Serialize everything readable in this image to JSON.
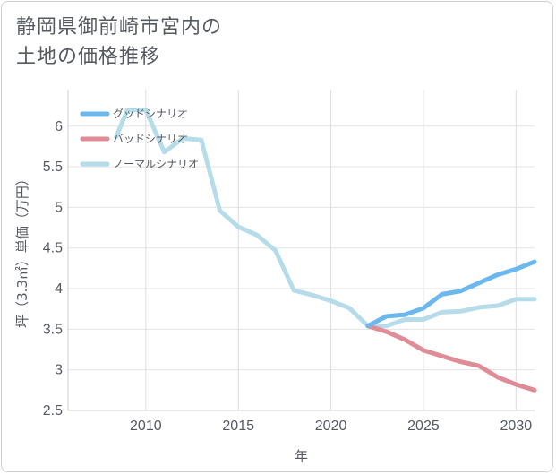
{
  "title_lines": [
    "静岡県御前崎市宮内の",
    "土地の価格推移"
  ],
  "chart_data": {
    "type": "line",
    "xlabel": "年",
    "ylabel": "坪（3.3㎡）単価（万円）",
    "xlim": [
      2005.8,
      2031
    ],
    "ylim": [
      2.5,
      6.45
    ],
    "xticks": [
      2010,
      2015,
      2020,
      2025,
      2030
    ],
    "yticks": [
      2.5,
      3,
      3.5,
      4,
      4.5,
      5,
      5.5,
      6
    ],
    "grid": true,
    "legend_position": "top-left",
    "series": [
      {
        "name": "グッドシナリオ",
        "color": "#6bb8ee",
        "x": [
          2022,
          2023,
          2024,
          2025,
          2026,
          2027,
          2028,
          2029,
          2030,
          2031
        ],
        "y": [
          3.54,
          3.66,
          3.68,
          3.76,
          3.93,
          3.97,
          4.07,
          4.17,
          4.24,
          4.33
        ]
      },
      {
        "name": "バッドシナリオ",
        "color": "#e08c96",
        "x": [
          2022,
          2023,
          2024,
          2025,
          2026,
          2027,
          2028,
          2029,
          2030,
          2031
        ],
        "y": [
          3.54,
          3.47,
          3.37,
          3.24,
          3.17,
          3.1,
          3.05,
          2.91,
          2.82,
          2.75
        ]
      },
      {
        "name": "ノーマルシナリオ",
        "color": "#b6dcea",
        "x": [
          2008.4,
          2009,
          2010,
          2011,
          2012,
          2013,
          2014,
          2015,
          2016,
          2017,
          2018,
          2019,
          2020,
          2021,
          2022,
          2023,
          2024,
          2025,
          2026,
          2027,
          2028,
          2029,
          2030,
          2031
        ],
        "y": [
          5.87,
          6.2,
          6.2,
          5.68,
          5.85,
          5.83,
          4.96,
          4.76,
          4.66,
          4.47,
          3.98,
          3.92,
          3.85,
          3.76,
          3.54,
          3.54,
          3.62,
          3.62,
          3.71,
          3.72,
          3.77,
          3.79,
          3.87,
          3.87
        ]
      }
    ]
  }
}
